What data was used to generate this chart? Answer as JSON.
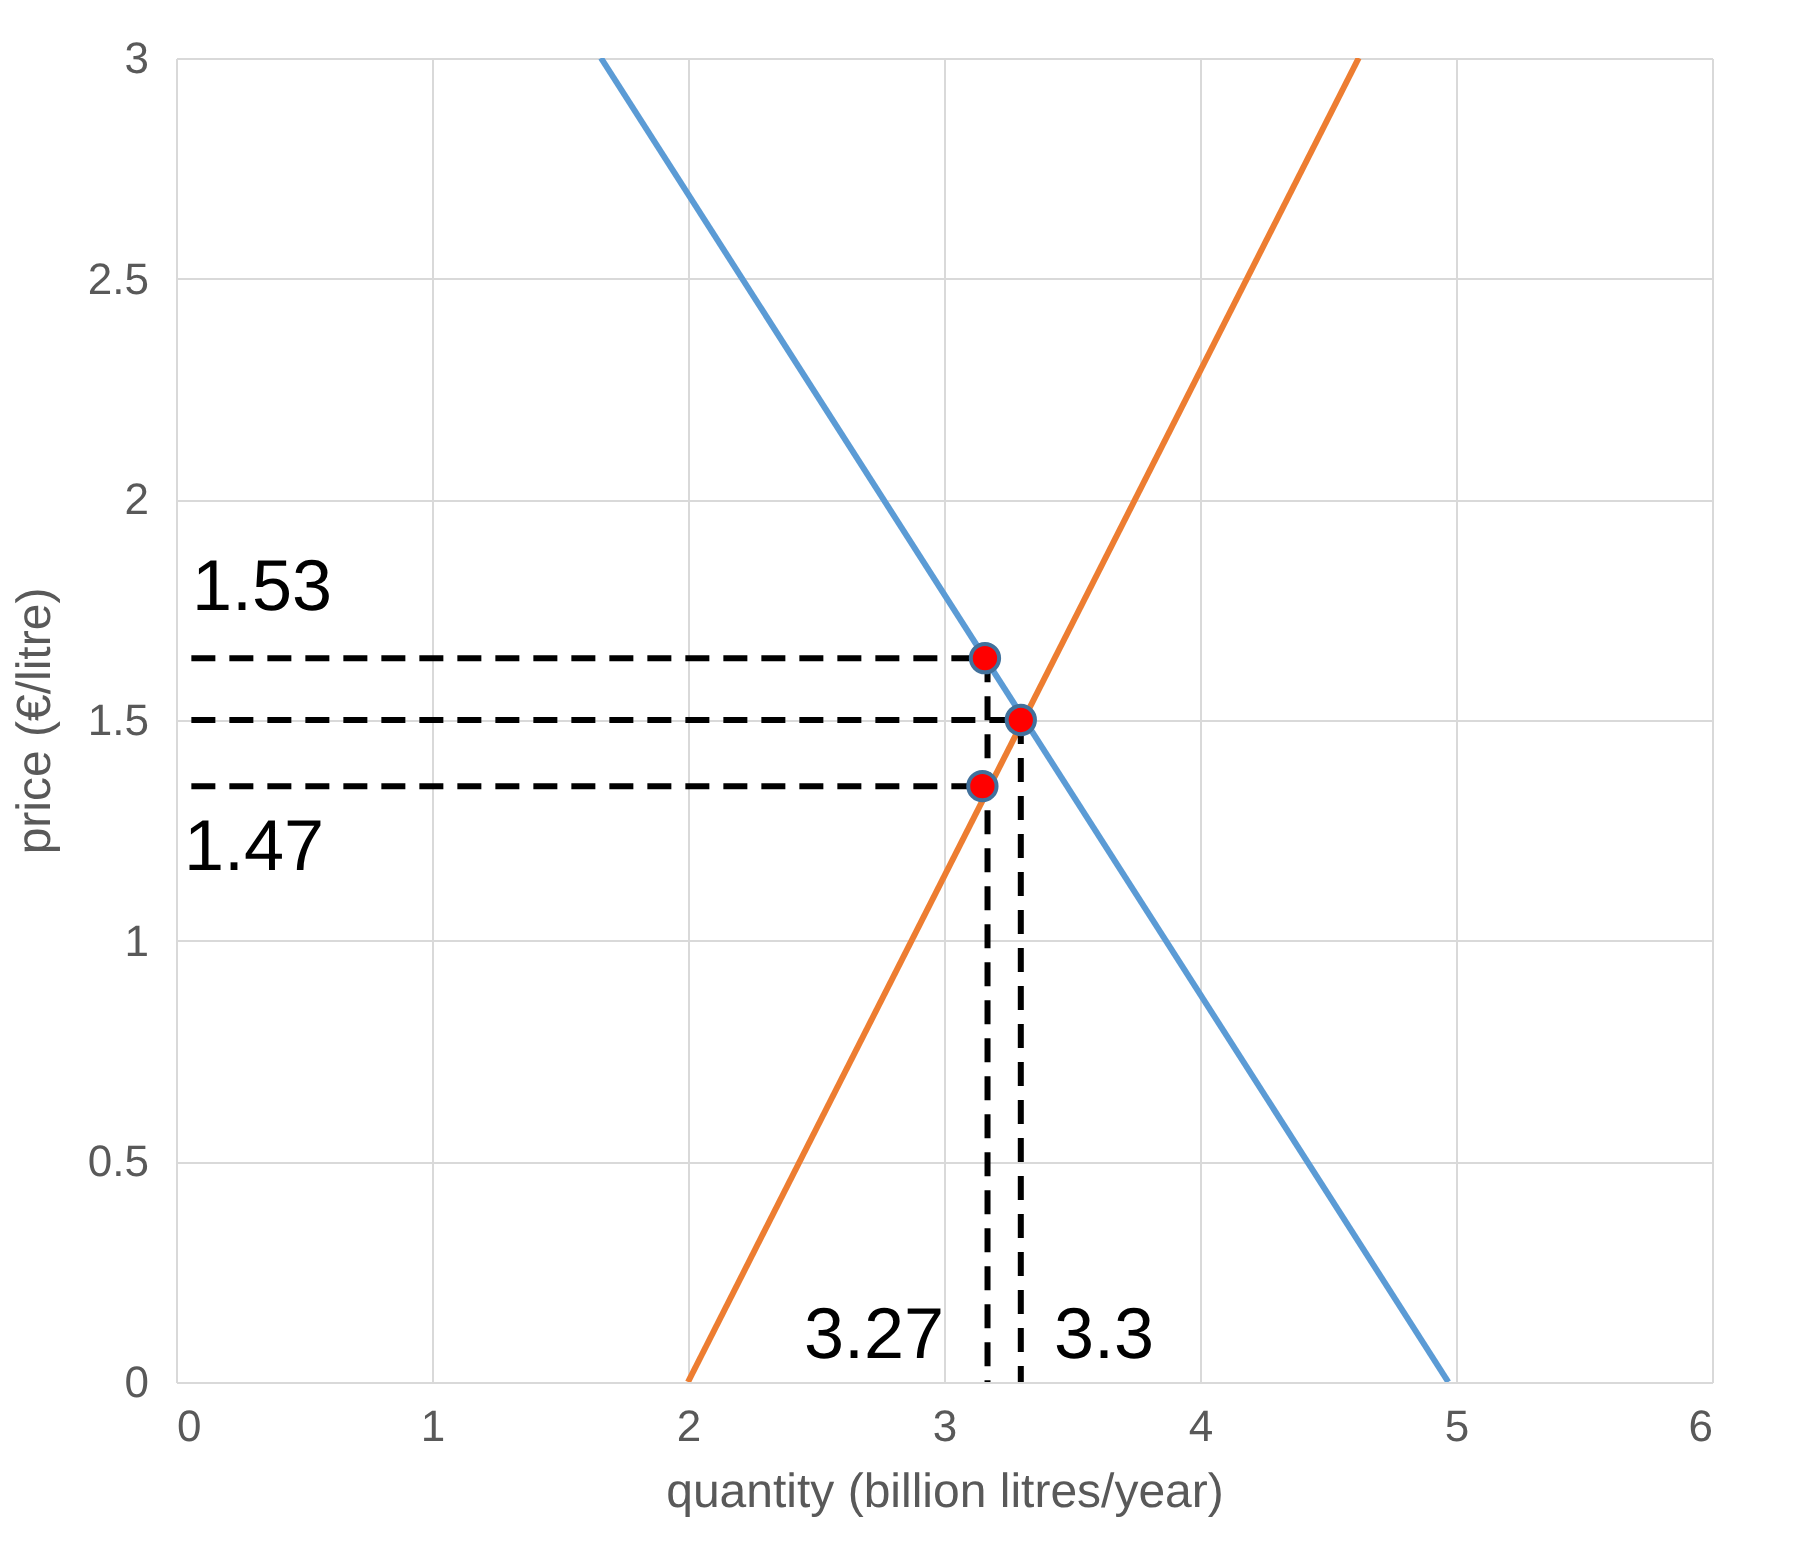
{
  "chart_data": {
    "type": "line",
    "xlabel": "quantity (billion litres/year)",
    "ylabel": "price (€/litre)",
    "xlim": [
      0,
      6
    ],
    "ylim": [
      0,
      3
    ],
    "xticks": [
      0,
      1,
      2,
      3,
      4,
      5,
      6
    ],
    "yticks": [
      0,
      0.5,
      1,
      1.5,
      2,
      2.5,
      3
    ],
    "grid": true,
    "series": [
      {
        "color": "#5b9bd5",
        "x": [
          1.66,
          4.97
        ],
        "values": [
          3,
          0
        ]
      },
      {
        "color": "#ed7d31",
        "x": [
          2,
          4.62
        ],
        "values": [
          0,
          3
        ]
      },
      {
        "color": "#000000",
        "line_style": "dashed",
        "x": [
          0.06,
          3.16
        ],
        "values": [
          1.64,
          1.64
        ]
      },
      {
        "color": "#000000",
        "line_style": "dashed",
        "x": [
          0.06,
          3.3
        ],
        "values": [
          1.5,
          1.5
        ]
      },
      {
        "color": "#000000",
        "line_style": "dashed",
        "x": [
          0.06,
          3.15
        ],
        "values": [
          1.35,
          1.35
        ]
      },
      {
        "color": "#000000",
        "line_style": "dashed",
        "x": [
          3.17,
          3.17
        ],
        "values": [
          1.64,
          0
        ]
      },
      {
        "color": "#000000",
        "line_style": "dashed",
        "x": [
          3.3,
          3.3
        ],
        "values": [
          1.5,
          0
        ]
      },
      {
        "type": "scatter",
        "color": "#ff0000",
        "marker": "circle",
        "x": [
          3.16,
          3.3,
          3.15
        ],
        "values": [
          1.64,
          1.5,
          1.35
        ]
      }
    ],
    "annotations": [
      "1.53",
      "1.47",
      "3.27",
      "3.3"
    ]
  }
}
